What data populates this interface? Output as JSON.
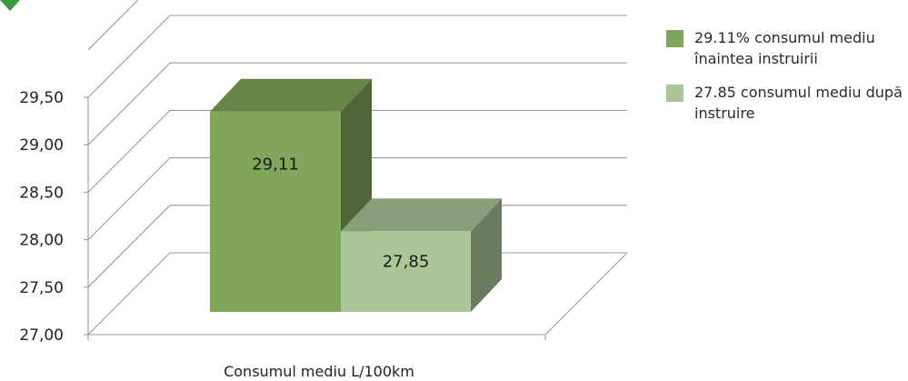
{
  "chart_data": {
    "type": "bar",
    "xlabel": "Consumul mediu L/100km",
    "ylim": [
      27.0,
      29.5
    ],
    "yticks": [
      "27,00",
      "27,50",
      "28,00",
      "28,50",
      "29,00",
      "29,50"
    ],
    "series": [
      {
        "name": "29.11% consumul mediu înaintea instruirii",
        "value": 29.11,
        "label": "29,11",
        "color": "#7fa65a"
      },
      {
        "name": "27.85 consumul mediu după instruire",
        "value": 27.85,
        "label": "27,85",
        "color": "#abc799"
      }
    ],
    "grid": true,
    "legend": "right",
    "three_d": true
  },
  "colors": {
    "accent": "#3a9a3e"
  }
}
